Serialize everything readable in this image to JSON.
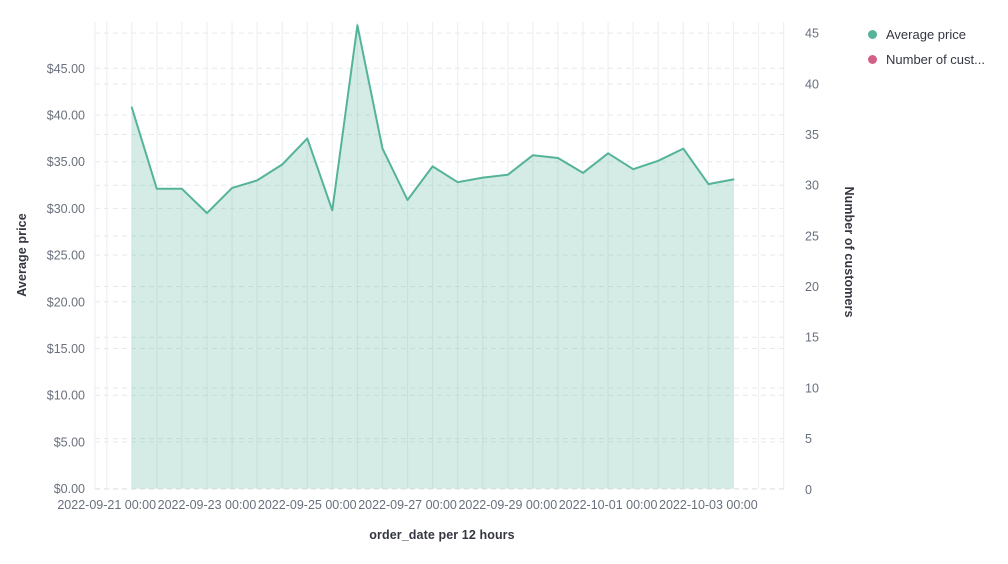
{
  "legend": {
    "items": [
      {
        "label": "Average price",
        "color": "#54B399"
      },
      {
        "label": "Number of cust...",
        "color": "#D36086"
      }
    ]
  },
  "chart_data": {
    "type": "area",
    "x_axis": {
      "title": "order_date per 12 hours",
      "tick_labels": [
        "2022-09-21 00:00",
        "2022-09-23 00:00",
        "2022-09-25 00:00",
        "2022-09-27 00:00",
        "2022-09-29 00:00",
        "2022-10-01 00:00",
        "2022-10-03 00:00"
      ]
    },
    "y_axis_left": {
      "title": "Average price",
      "tick_labels": [
        "$0.00",
        "$5.00",
        "$10.00",
        "$15.00",
        "$20.00",
        "$25.00",
        "$30.00",
        "$35.00",
        "$40.00",
        "$45.00"
      ],
      "tick_values": [
        0,
        5,
        10,
        15,
        20,
        25,
        30,
        35,
        40,
        45
      ],
      "range": [
        0,
        50
      ]
    },
    "y_axis_right": {
      "title": "Number of customers",
      "tick_labels": [
        "0",
        "5",
        "10",
        "15",
        "20",
        "25",
        "30",
        "35",
        "40",
        "45"
      ],
      "tick_values": [
        0,
        5,
        10,
        15,
        20,
        25,
        30,
        35,
        40,
        45
      ],
      "range": [
        0,
        46
      ]
    },
    "grid": {
      "vertical": "solid every 12 hours",
      "horizontal": "dashed"
    },
    "legend_position": "top-right",
    "series": [
      {
        "name": "Average price",
        "axis": "left",
        "color": "#54B399",
        "fill_opacity": 0.25,
        "x": [
          "2022-09-21 12:00",
          "2022-09-22 00:00",
          "2022-09-22 12:00",
          "2022-09-23 00:00",
          "2022-09-23 12:00",
          "2022-09-24 00:00",
          "2022-09-24 12:00",
          "2022-09-25 00:00",
          "2022-09-25 12:00",
          "2022-09-26 00:00",
          "2022-09-26 12:00",
          "2022-09-27 00:00",
          "2022-09-27 12:00",
          "2022-09-28 00:00",
          "2022-09-28 12:00",
          "2022-09-29 00:00",
          "2022-09-29 12:00",
          "2022-09-30 00:00",
          "2022-09-30 12:00",
          "2022-10-01 00:00",
          "2022-10-01 12:00",
          "2022-10-02 00:00",
          "2022-10-02 12:00",
          "2022-10-03 00:00",
          "2022-10-03 12:00"
        ],
        "values": [
          40.8,
          32.1,
          32.1,
          29.5,
          32.2,
          33.0,
          34.7,
          37.5,
          29.8,
          49.6,
          36.4,
          30.9,
          34.5,
          32.8,
          33.3,
          33.6,
          35.7,
          35.4,
          33.8,
          35.9,
          34.2,
          35.1,
          36.4,
          32.6,
          33.1
        ]
      },
      {
        "name": "Number of customers",
        "axis": "right",
        "color": "#D36086",
        "values": []
      }
    ]
  }
}
